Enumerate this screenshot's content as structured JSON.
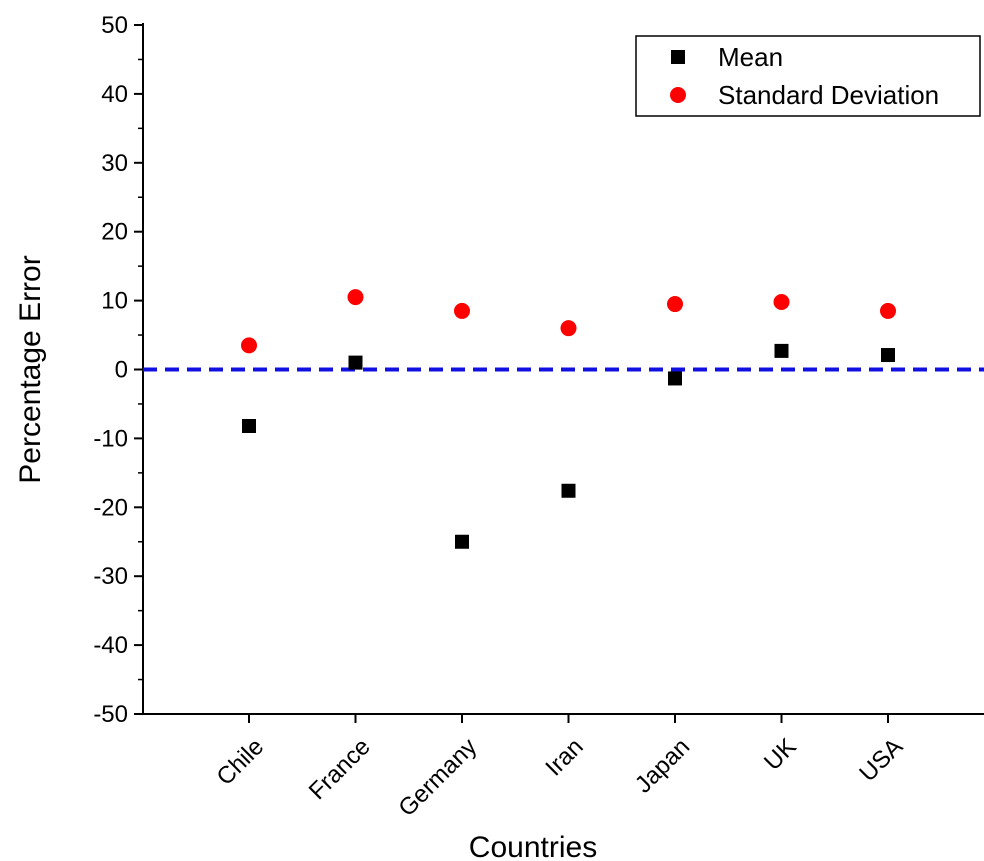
{
  "chart_data": {
    "type": "scatter",
    "xlabel": "Countries",
    "ylabel": "Percentage Error",
    "categories": [
      "Chile",
      "France",
      "Germany",
      "Iran",
      "Japan",
      "UK",
      "USA"
    ],
    "ylim": [
      -50,
      50
    ],
    "yticks": [
      -50,
      -40,
      -30,
      -20,
      -10,
      0,
      10,
      20,
      30,
      40,
      50
    ],
    "grid": false,
    "legend_position": "top-right",
    "reference_line": {
      "y": 0,
      "style": "dashed",
      "color": "#1010e0"
    },
    "series": [
      {
        "name": "Mean",
        "marker": "square",
        "color": "#000000",
        "values": [
          -8.2,
          1.0,
          -25.0,
          -17.6,
          -1.3,
          2.7,
          2.1
        ]
      },
      {
        "name": "Standard Deviation",
        "marker": "circle",
        "color": "#ff0000",
        "values": [
          3.5,
          10.5,
          8.5,
          6.0,
          9.5,
          9.8,
          8.5
        ]
      }
    ]
  }
}
